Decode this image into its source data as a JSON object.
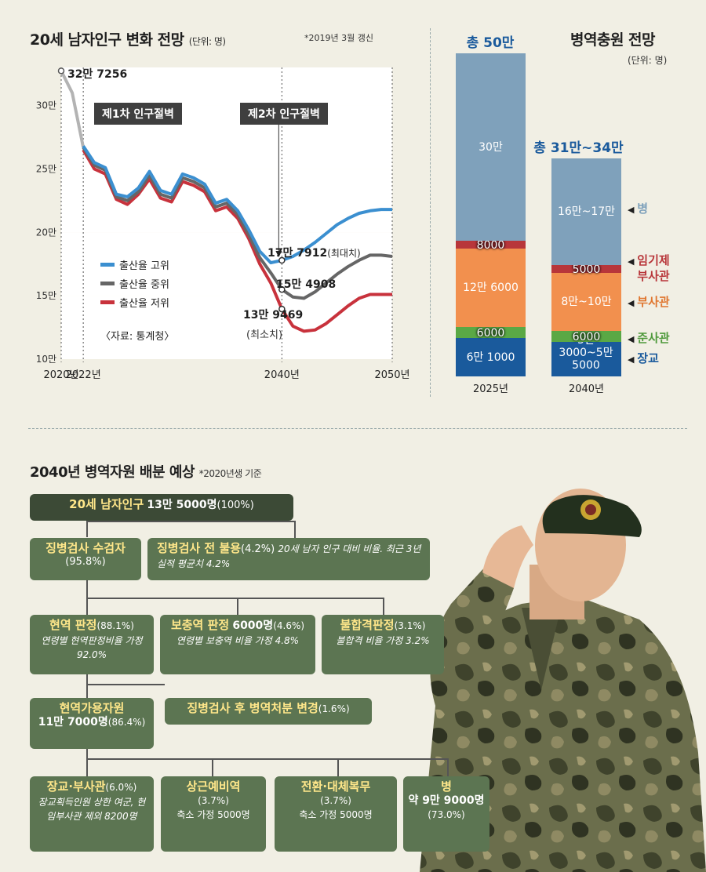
{
  "chart_title": "20세 남자인구 변화 전망",
  "chart_unit": "(단위: 명)",
  "chart_note": "*2019년 3월 갱신",
  "forecast_title": "병역충원 전망",
  "forecast_unit": "(단위: 명)",
  "annotations": {
    "start": "32만 7256",
    "cliff1": "제1차 인구절벽",
    "cliff2": "제2차 인구절벽",
    "high": "17만 7912",
    "high_note": "(최대치)",
    "mid": "15만 4908",
    "low": "13만 9469",
    "low_note": "(최소치)"
  },
  "legend": [
    "출산율 고위",
    "출산율 중위",
    "출산율 저위"
  ],
  "source": "〈자료: 통계청〉",
  "chart_data": [
    {
      "type": "line",
      "title": "20세 남자인구 변화 전망",
      "ylabel": "(단위: 명)",
      "ylim": [
        10,
        33
      ],
      "yticks": [
        "10만",
        "15만",
        "20만",
        "25만",
        "30만"
      ],
      "ytick_values": [
        10,
        15,
        20,
        25,
        30
      ],
      "xticks": [
        "2020년",
        "2022년",
        "2040년",
        "2050년"
      ],
      "xtick_values": [
        2020,
        2022,
        2040,
        2050
      ],
      "history": {
        "x": [
          2020,
          2021,
          2022
        ],
        "values": [
          32.73,
          31.0,
          26.7
        ]
      },
      "series": [
        {
          "name": "출산율 고위",
          "color": "#3b8fd0",
          "x": [
            2022,
            2023,
            2024,
            2025,
            2026,
            2027,
            2028,
            2029,
            2030,
            2031,
            2032,
            2033,
            2034,
            2035,
            2036,
            2037,
            2038,
            2039,
            2040,
            2041,
            2042,
            2043,
            2044,
            2045,
            2046,
            2047,
            2048,
            2049,
            2050
          ],
          "values": [
            26.8,
            25.5,
            25.1,
            23.0,
            22.8,
            23.5,
            24.8,
            23.3,
            23.0,
            24.6,
            24.3,
            23.8,
            22.3,
            22.6,
            21.7,
            20.2,
            18.5,
            17.6,
            17.79,
            18.1,
            18.6,
            19.2,
            19.9,
            20.6,
            21.1,
            21.5,
            21.7,
            21.8,
            21.8
          ]
        },
        {
          "name": "출산율 중위",
          "color": "#666666",
          "x": [
            2022,
            2023,
            2024,
            2025,
            2026,
            2027,
            2028,
            2029,
            2030,
            2031,
            2032,
            2033,
            2034,
            2035,
            2036,
            2037,
            2038,
            2039,
            2040,
            2041,
            2042,
            2043,
            2044,
            2045,
            2046,
            2047,
            2048,
            2049,
            2050
          ],
          "values": [
            26.7,
            25.3,
            24.9,
            22.8,
            22.5,
            23.2,
            24.5,
            23.0,
            22.7,
            24.3,
            24.0,
            23.5,
            22.0,
            22.3,
            21.4,
            19.8,
            18.0,
            16.8,
            15.49,
            14.9,
            14.8,
            15.3,
            16.0,
            16.7,
            17.3,
            17.8,
            18.2,
            18.2,
            18.1
          ]
        },
        {
          "name": "출산율 저위",
          "color": "#c8323c",
          "x": [
            2022,
            2023,
            2024,
            2025,
            2026,
            2027,
            2028,
            2029,
            2030,
            2031,
            2032,
            2033,
            2034,
            2035,
            2036,
            2037,
            2038,
            2039,
            2040,
            2041,
            2042,
            2043,
            2044,
            2045,
            2046,
            2047,
            2048,
            2049,
            2050
          ],
          "values": [
            26.5,
            25.0,
            24.6,
            22.6,
            22.2,
            23.0,
            24.2,
            22.7,
            22.4,
            24.0,
            23.7,
            23.2,
            21.7,
            22.0,
            21.1,
            19.5,
            17.5,
            16.0,
            13.95,
            12.6,
            12.2,
            12.3,
            12.8,
            13.5,
            14.2,
            14.8,
            15.1,
            15.1,
            15.1
          ]
        }
      ]
    },
    {
      "type": "bar",
      "title": "병역충원 전망",
      "ylabel": "(단위: 명)",
      "categories": [
        "2025년",
        "2040년"
      ],
      "totals": [
        "총 50만",
        "총 31만~34만"
      ],
      "stacks": [
        {
          "year": "2025년",
          "segments": [
            {
              "name": "장교",
              "label": "6만 1000",
              "value": 61000,
              "color": "#1a5a9c"
            },
            {
              "name": "준사관",
              "label": "6000",
              "value": 6000,
              "color": "#5aa845"
            },
            {
              "name": "부사관",
              "label": "12만 6000",
              "value": 126000,
              "color": "#f2904e"
            },
            {
              "name": "임기제 부사관",
              "label": "8000",
              "value": 8000,
              "color": "#b8363a"
            },
            {
              "name": "병",
              "label": "30만",
              "value": 300000,
              "color": "#7fa1bb"
            }
          ]
        },
        {
          "year": "2040년",
          "segments": [
            {
              "name": "장교",
              "label": "5만 3000~5만 5000",
              "value": 54000,
              "color": "#1a5a9c"
            },
            {
              "name": "준사관",
              "label": "6000",
              "value": 6000,
              "color": "#5aa845"
            },
            {
              "name": "부사관",
              "label": "8만~10만",
              "value": 90000,
              "color": "#f2904e"
            },
            {
              "name": "임기제 부사관",
              "label": "5000",
              "value": 5000,
              "color": "#b8363a"
            },
            {
              "name": "병",
              "label": "16만~17만",
              "value": 165000,
              "color": "#7fa1bb"
            }
          ]
        }
      ],
      "side_labels": [
        {
          "text": "병",
          "color": "#7fa1bb"
        },
        {
          "text": "임기제 부사관",
          "color": "#b8363a"
        },
        {
          "text": "부사관",
          "color": "#e0762f"
        },
        {
          "text": "준사관",
          "color": "#4f9a3c"
        },
        {
          "text": "장교",
          "color": "#1a5a9c"
        }
      ]
    }
  ],
  "flow": {
    "title": "2040년 병역자원 배분 예상",
    "note": "*2020년생 기준",
    "root": {
      "name": "20세 남자인구",
      "value": "13만 5000명",
      "pct": "(100%)"
    },
    "exam": {
      "name": "징병검사 수검자",
      "pct": "(95.8%)"
    },
    "pre_exempt": {
      "name": "징병검사 전 불용",
      "pct": "(4.2%)",
      "note": "20세 남자 인구 대비 비율. 최근 3년 실적 평균치 4.2%"
    },
    "active": {
      "name": "현역 판정",
      "pct": "(88.1%)",
      "note": "연령별 현역판정비율 가정 92.0%"
    },
    "supplement": {
      "name": "보충역 판정",
      "value": "6000명",
      "pct": "(4.6%)",
      "note": "연령별 보충역 비율 가정 4.8%"
    },
    "fail": {
      "name": "불합격판정",
      "pct": "(3.1%)",
      "note": "불합격 비율 가정 3.2%"
    },
    "available": {
      "name": "현역가용자원",
      "value": "11만 7000명",
      "pct": "(86.4%)"
    },
    "changed": {
      "name": "징병검사 후 병역처분 변경",
      "pct": "(1.6%)"
    },
    "officer": {
      "name": "장교·부사관",
      "pct": "(6.0%)",
      "note": "장교획득인원 상한 여군, 현임부사관 제외 8200명"
    },
    "reserve": {
      "name": "상근예비역",
      "pct": "(3.7%)",
      "note": "축소 가정 5000명"
    },
    "alt": {
      "name": "전환·대체복무",
      "pct": "(3.7%)",
      "note": "축소 가정 5000명"
    },
    "soldier": {
      "name": "병",
      "value": "약 9만 9000명",
      "pct": "(73.0%)"
    }
  }
}
